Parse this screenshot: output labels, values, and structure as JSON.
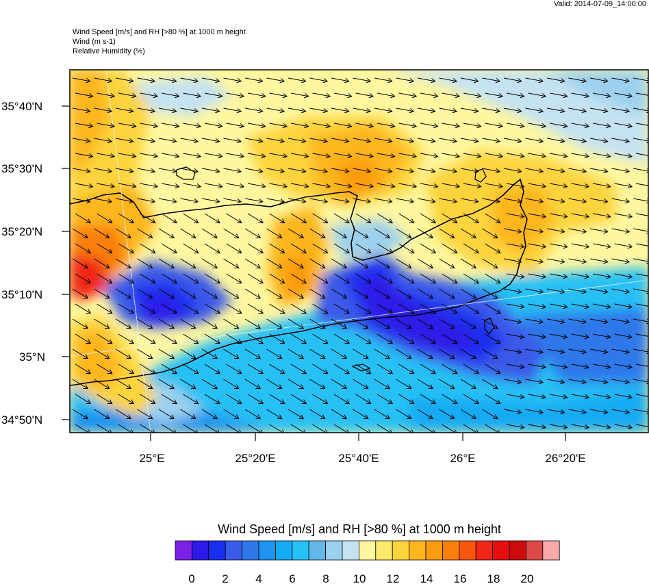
{
  "valid_time": "Valid: 2014-07-09_14:00:00",
  "title_lines": [
    "Wind Speed [m/s] and RH [>80 %] at 1000 m height",
    "Wind   (m s-1)",
    "Relative Humidity   (%)"
  ],
  "lat_labels": [
    "35°40'N",
    "35°30'N",
    "35°20'N",
    "35°10'N",
    "35°N",
    "34°50'N"
  ],
  "lon_labels": [
    "25°E",
    "25°20'E",
    "25°40'E",
    "26°E",
    "26°20'E"
  ],
  "colorbar": {
    "title": "Wind Speed [m/s] and RH [>80 %] at 1000 m height",
    "colors": [
      "#7b22e6",
      "#2e1ae8",
      "#1b2ff0",
      "#3a5ae8",
      "#2f78ea",
      "#1f93f0",
      "#16aaf3",
      "#25c0f5",
      "#63b8e8",
      "#9bd0ee",
      "#c4e2f2",
      "#fff7a0",
      "#fde96b",
      "#fdd43c",
      "#fdb61e",
      "#fd9b10",
      "#fb7f0b",
      "#f8560e",
      "#f02617",
      "#e80e10",
      "#cc0c0c",
      "#dd4848",
      "#f7a8a8"
    ],
    "tick_labels": [
      "0",
      "2",
      "4",
      "6",
      "8",
      "10",
      "12",
      "14",
      "16",
      "18",
      "20"
    ]
  }
}
